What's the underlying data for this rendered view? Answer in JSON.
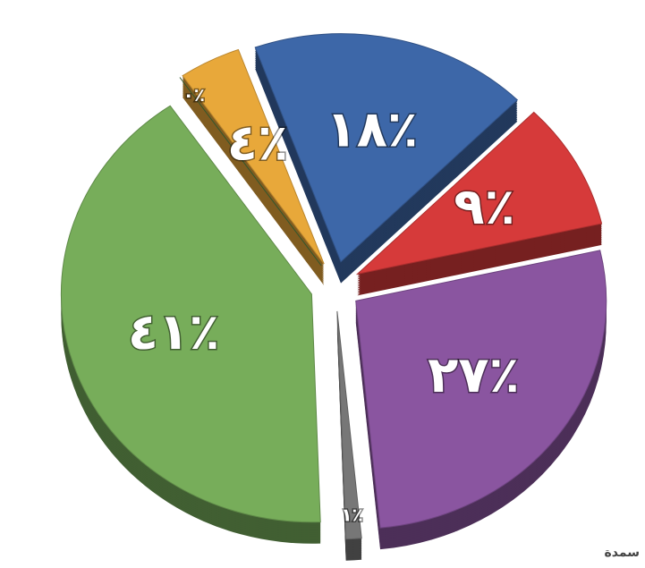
{
  "chart_data": {
    "type": "pie",
    "categories": null,
    "values": [
      18,
      9,
      27,
      1,
      41,
      0,
      4
    ],
    "value_labels": [
      "١٨٪",
      "٩٪",
      "٢٧٪",
      "١٪",
      "٤١٪",
      "٠٪",
      "٤٪"
    ],
    "colors": [
      "#3d67a8",
      "#d63a3a",
      "#8a55a0",
      "#777777",
      "#77ad5a",
      "#3f6b3a",
      "#e8a83a"
    ],
    "credit": "سمدة"
  }
}
